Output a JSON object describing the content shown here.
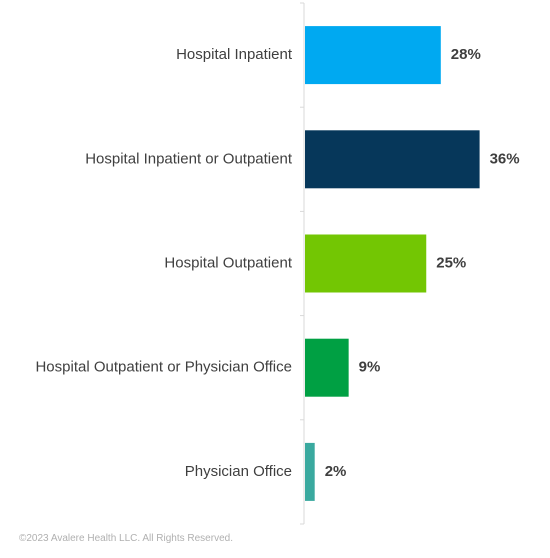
{
  "chart_data": {
    "type": "bar",
    "orientation": "horizontal",
    "categories": [
      "Hospital Inpatient",
      "Hospital Inpatient or Outpatient",
      "Hospital Outpatient",
      "Hospital Outpatient or Physician Office",
      "Physician Office"
    ],
    "values": [
      28,
      36,
      25,
      9,
      2
    ],
    "value_labels": [
      "28%",
      "36%",
      "25%",
      "9%",
      "2%"
    ],
    "colors": [
      "#00a9f1",
      "#06375a",
      "#73c603",
      "#00a043",
      "#3aa99f"
    ],
    "xlim": [
      0,
      50
    ],
    "grid": false,
    "legend": "none",
    "title": "",
    "xlabel": "",
    "ylabel": ""
  },
  "footer": {
    "copyright": "©2023 Avalere Health LLC. All Rights Reserved."
  }
}
